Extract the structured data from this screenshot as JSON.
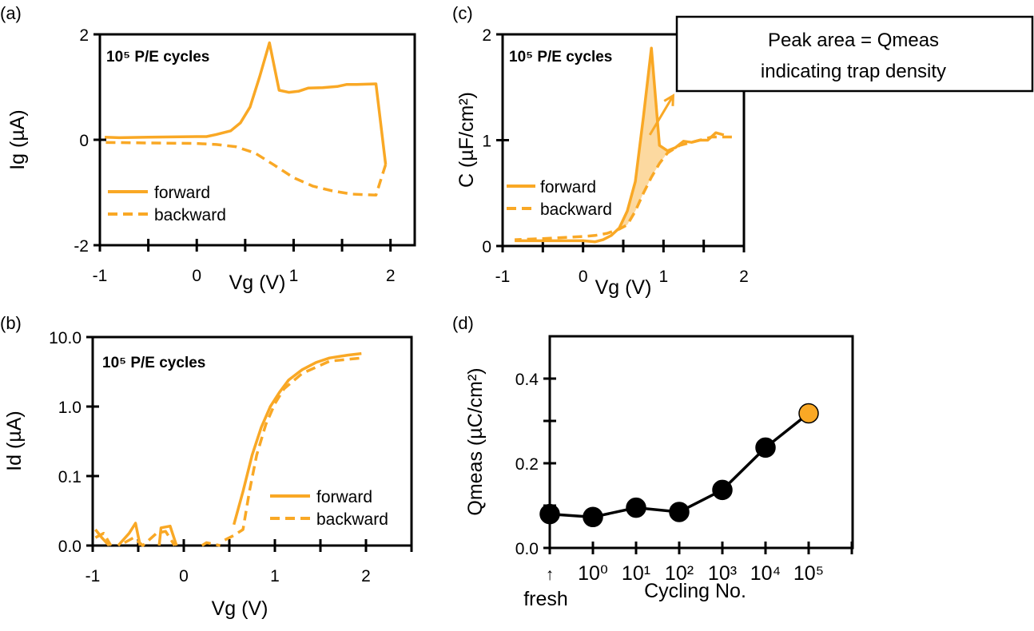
{
  "colors": {
    "series": "#F9A825",
    "fill": "#FCD9A0",
    "axis": "#000000",
    "marker_default": "#000000",
    "marker_highlight": "#F9A825"
  },
  "chart_data": [
    {
      "panel_label": "(a)",
      "type": "line",
      "note": "10⁵ P/E cycles",
      "xlabel": "Vg (V)",
      "ylabel": "Ig (µA)",
      "xlim": [
        -1,
        2.25
      ],
      "ylim": [
        -2,
        2
      ],
      "xticks": [
        -1,
        0,
        1,
        2
      ],
      "xtick_labels": [
        "-1",
        "0",
        "1",
        "2"
      ],
      "yticks": [
        -2,
        0,
        2
      ],
      "ytick_labels": [
        "-2",
        "0",
        "2"
      ],
      "legend": "center-left",
      "series": [
        {
          "name": "forward",
          "style": "solid",
          "points": [
            [
              -0.95,
              0.05
            ],
            [
              -0.8,
              0.04
            ],
            [
              -0.5,
              0.05
            ],
            [
              0,
              0.06
            ],
            [
              0.1,
              0.06
            ],
            [
              0.2,
              0.1
            ],
            [
              0.35,
              0.17
            ],
            [
              0.45,
              0.32
            ],
            [
              0.55,
              0.62
            ],
            [
              0.65,
              1.2
            ],
            [
              0.75,
              1.84
            ],
            [
              0.85,
              0.94
            ],
            [
              0.95,
              0.9
            ],
            [
              1.05,
              0.92
            ],
            [
              1.15,
              0.98
            ],
            [
              1.3,
              0.99
            ],
            [
              1.45,
              1.01
            ],
            [
              1.55,
              1.05
            ],
            [
              1.65,
              1.05
            ],
            [
              1.85,
              1.06
            ],
            [
              1.95,
              -0.47
            ]
          ]
        },
        {
          "name": "backward",
          "style": "dashed",
          "points": [
            [
              1.95,
              -0.47
            ],
            [
              1.85,
              -1.05
            ],
            [
              1.6,
              -1.03
            ],
            [
              1.4,
              -0.97
            ],
            [
              1.2,
              -0.88
            ],
            [
              1.0,
              -0.72
            ],
            [
              0.8,
              -0.48
            ],
            [
              0.6,
              -0.25
            ],
            [
              0.4,
              -0.13
            ],
            [
              0.2,
              -0.09
            ],
            [
              0,
              -0.07
            ],
            [
              -0.5,
              -0.06
            ],
            [
              -0.95,
              -0.05
            ]
          ]
        }
      ]
    },
    {
      "panel_label": "(b)",
      "type": "line",
      "note": "10⁵ P/E cycles",
      "xlabel": "Vg (V)",
      "ylabel": "Id (µA)",
      "xlim": [
        -1,
        2.5
      ],
      "ylim": [
        0.01,
        10
      ],
      "yscale": "log",
      "xticks": [
        -1,
        0,
        1,
        2
      ],
      "xtick_labels": [
        "-1",
        "0",
        "1",
        "2"
      ],
      "yticks": [
        0.01,
        0.1,
        1,
        10
      ],
      "ytick_labels": [
        "0.0",
        "0.1",
        "1.0",
        "10.0"
      ],
      "legend": "lower-right",
      "series": [
        {
          "name": "forward",
          "style": "solid",
          "segments": [
            [
              [
                -0.97,
                0.017
              ],
              [
                -0.9,
                0.013
              ],
              [
                -0.82,
                0.01
              ]
            ],
            [
              [
                -0.72,
                0.01
              ],
              [
                -0.6,
                0.015
              ],
              [
                -0.53,
                0.021
              ],
              [
                -0.48,
                0.01
              ]
            ],
            [
              [
                -0.27,
                0.01
              ],
              [
                -0.25,
                0.018
              ],
              [
                -0.15,
                0.019
              ],
              [
                -0.08,
                0.01
              ]
            ],
            [
              [
                0.55,
                0.02
              ],
              [
                0.65,
                0.06
              ],
              [
                0.75,
                0.2
              ],
              [
                0.85,
                0.5
              ],
              [
                0.95,
                1.0
              ],
              [
                1.05,
                1.6
              ],
              [
                1.15,
                2.4
              ],
              [
                1.3,
                3.4
              ],
              [
                1.45,
                4.3
              ],
              [
                1.6,
                5.0
              ],
              [
                1.8,
                5.5
              ],
              [
                1.95,
                5.8
              ]
            ]
          ]
        },
        {
          "name": "backward",
          "style": "dashed",
          "segments": [
            [
              [
                -0.97,
                0.013
              ],
              [
                -0.88,
                0.015
              ],
              [
                -0.8,
                0.01
              ]
            ],
            [
              [
                -0.65,
                0.011
              ],
              [
                -0.55,
                0.013
              ],
              [
                -0.45,
                0.01
              ],
              [
                -0.3,
                0.015
              ],
              [
                -0.2,
                0.016
              ],
              [
                -0.1,
                0.01
              ]
            ],
            [
              [
                0.2,
                0.01
              ],
              [
                0.25,
                0.011
              ],
              [
                0.4,
                0.01
              ]
            ],
            [
              [
                0.45,
                0.012
              ],
              [
                0.55,
                0.014
              ],
              [
                0.65,
                0.017
              ],
              [
                0.72,
                0.06
              ],
              [
                0.8,
                0.2
              ],
              [
                0.9,
                0.55
              ],
              [
                1.0,
                1.1
              ],
              [
                1.1,
                1.8
              ],
              [
                1.3,
                3.0
              ],
              [
                1.6,
                4.5
              ],
              [
                1.95,
                5.0
              ]
            ]
          ]
        }
      ]
    },
    {
      "panel_label": "(c)",
      "type": "line",
      "note": "10⁵ P/E cycles",
      "xlabel": "Vg (V)",
      "ylabel": "C (µF/cm²)",
      "xlim": [
        -1,
        2
      ],
      "ylim": [
        0,
        2
      ],
      "xticks": [
        -1,
        0,
        1,
        2
      ],
      "xtick_labels": [
        "-1",
        "0",
        "1",
        "2"
      ],
      "yticks": [
        0,
        1,
        2
      ],
      "ytick_labels": [
        "0",
        "1",
        "2"
      ],
      "legend": "center-left",
      "annotation": {
        "line1": "Peak area = Qmeas",
        "line2": "indicating trap density"
      },
      "series": [
        {
          "name": "forward",
          "style": "solid",
          "points": [
            [
              -0.85,
              0.05
            ],
            [
              -0.5,
              0.05
            ],
            [
              0,
              0.05
            ],
            [
              0.15,
              0.04
            ],
            [
              0.25,
              0.06
            ],
            [
              0.35,
              0.1
            ],
            [
              0.45,
              0.17
            ],
            [
              0.55,
              0.33
            ],
            [
              0.65,
              0.61
            ],
            [
              0.75,
              1.22
            ],
            [
              0.85,
              1.87
            ],
            [
              0.95,
              0.95
            ],
            [
              1.05,
              0.9
            ],
            [
              1.15,
              0.93
            ],
            [
              1.25,
              0.99
            ],
            [
              1.35,
              0.98
            ],
            [
              1.45,
              1.0
            ],
            [
              1.55,
              1.0
            ],
            [
              1.65,
              1.07
            ],
            [
              1.75,
              1.05
            ]
          ]
        },
        {
          "name": "backward",
          "style": "dashed",
          "points": [
            [
              1.85,
              1.03
            ],
            [
              1.75,
              1.03
            ],
            [
              1.6,
              1.03
            ],
            [
              1.4,
              0.99
            ],
            [
              1.2,
              0.95
            ],
            [
              1.05,
              0.88
            ],
            [
              0.95,
              0.78
            ],
            [
              0.85,
              0.65
            ],
            [
              0.75,
              0.5
            ],
            [
              0.65,
              0.33
            ],
            [
              0.55,
              0.2
            ],
            [
              0.45,
              0.16
            ],
            [
              0.3,
              0.12
            ],
            [
              0.15,
              0.1
            ],
            [
              0,
              0.09
            ],
            [
              -0.5,
              0.07
            ],
            [
              -0.85,
              0.06
            ]
          ]
        }
      ]
    },
    {
      "panel_label": "(d)",
      "type": "line",
      "xlabel": "Cycling No.",
      "ylabel": "Qmeas (µC/cm²)",
      "ylim": [
        0,
        0.5
      ],
      "yticks": [
        0,
        0.1,
        0.2,
        0.3,
        0.4
      ],
      "ytick_labels": [
        "0.0",
        "",
        "0.2",
        "",
        "0.4"
      ],
      "categories": [
        "fresh",
        "10⁰",
        "10¹",
        "10²",
        "10³",
        "10⁴",
        "10⁵"
      ],
      "fresh_marker": "↑",
      "values": [
        0.08,
        0.073,
        0.095,
        0.085,
        0.137,
        0.237,
        0.318
      ],
      "highlight_index": 6
    }
  ]
}
